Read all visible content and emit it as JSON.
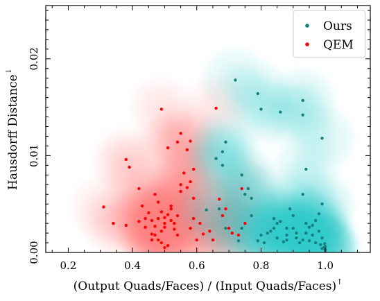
{
  "chart_data": {
    "type": "scatter",
    "xlabel": "(Output Quads/Faces) / (Input Quads/Faces)",
    "xlabel_arrow": "↑",
    "ylabel": "Hausdorff Distance",
    "ylabel_arrow": "↓",
    "xlim": [
      0.13,
      1.14
    ],
    "ylim": [
      0.0,
      0.0255
    ],
    "x_ticks": [
      0.2,
      0.4,
      0.6,
      0.8,
      1.0
    ],
    "x_tick_labels": [
      "0.2",
      "0.4",
      "0.6",
      "0.8",
      "1.0"
    ],
    "y_ticks": [
      0.0,
      0.01,
      0.02
    ],
    "y_tick_labels": [
      "0.00",
      "0.01",
      "0.02"
    ],
    "grid": false,
    "legend_position": "top-right",
    "density_overlay": true,
    "series": [
      {
        "name": "Ours",
        "color": "#167f7f",
        "density_color": "#2ec4c4",
        "points": [
          [
            0.72,
            0.0178
          ],
          [
            0.79,
            0.0164
          ],
          [
            0.8,
            0.0148
          ],
          [
            0.86,
            0.0145
          ],
          [
            0.93,
            0.0157
          ],
          [
            0.93,
            0.0142
          ],
          [
            0.99,
            0.0118
          ],
          [
            0.94,
            0.0086
          ],
          [
            0.69,
            0.0114
          ],
          [
            0.68,
            0.0104
          ],
          [
            0.66,
            0.0097
          ],
          [
            0.68,
            0.009
          ],
          [
            0.74,
            0.008
          ],
          [
            0.76,
            0.0066
          ],
          [
            0.75,
            0.006
          ],
          [
            0.77,
            0.0056
          ],
          [
            0.67,
            0.0045
          ],
          [
            0.63,
            0.0044
          ],
          [
            0.74,
            0.0025
          ],
          [
            0.77,
            0.0038
          ],
          [
            0.69,
            0.0025
          ],
          [
            0.73,
            0.0012
          ],
          [
            0.79,
            0.0012
          ],
          [
            0.81,
            0.001
          ],
          [
            0.8,
            0.0018
          ],
          [
            0.82,
            0.002
          ],
          [
            0.83,
            0.0022
          ],
          [
            0.84,
            0.0025
          ],
          [
            0.85,
            0.003
          ],
          [
            0.86,
            0.0032
          ],
          [
            0.85,
            0.0015
          ],
          [
            0.87,
            0.0011
          ],
          [
            0.88,
            0.0013
          ],
          [
            0.88,
            0.0018
          ],
          [
            0.88,
            0.0025
          ],
          [
            0.89,
            0.0045
          ],
          [
            0.9,
            0.0038
          ],
          [
            0.9,
            0.0025
          ],
          [
            0.91,
            0.002
          ],
          [
            0.91,
            0.0015
          ],
          [
            0.92,
            0.001
          ],
          [
            0.93,
            0.0013
          ],
          [
            0.94,
            0.002
          ],
          [
            0.94,
            0.003
          ],
          [
            0.95,
            0.0026
          ],
          [
            0.95,
            0.0012
          ],
          [
            0.96,
            0.0018
          ],
          [
            0.96,
            0.0028
          ],
          [
            0.97,
            0.001
          ],
          [
            0.97,
            0.0033
          ],
          [
            0.98,
            0.004
          ],
          [
            0.98,
            0.0022
          ],
          [
            0.99,
            0.005
          ],
          [
            0.99,
            0.0015
          ],
          [
            0.985,
            0.0008
          ],
          [
            0.99,
            0.0004
          ],
          [
            0.995,
            0.0005
          ],
          [
            1.0,
            0.0003
          ],
          [
            1.0,
            0.0006
          ],
          [
            1.0,
            0.0002
          ],
          [
            0.998,
            0.0009
          ],
          [
            0.93,
            0.006
          ],
          [
            0.84,
            0.0035
          ]
        ]
      },
      {
        "name": "QEM",
        "color": "#ff0000",
        "density_color": "#ff7b7b",
        "points": [
          [
            0.49,
            0.0148
          ],
          [
            0.66,
            0.0149
          ],
          [
            0.55,
            0.0123
          ],
          [
            0.54,
            0.0114
          ],
          [
            0.58,
            0.0115
          ],
          [
            0.57,
            0.0106
          ],
          [
            0.51,
            0.0108
          ],
          [
            0.38,
            0.0096
          ],
          [
            0.39,
            0.0088
          ],
          [
            0.56,
            0.0082
          ],
          [
            0.59,
            0.0086
          ],
          [
            0.55,
            0.007
          ],
          [
            0.58,
            0.0073
          ],
          [
            0.57,
            0.0067
          ],
          [
            0.55,
            0.0063
          ],
          [
            0.59,
            0.0056
          ],
          [
            0.42,
            0.0066
          ],
          [
            0.47,
            0.006
          ],
          [
            0.48,
            0.0052
          ],
          [
            0.43,
            0.0048
          ],
          [
            0.45,
            0.0041
          ],
          [
            0.44,
            0.0035
          ],
          [
            0.31,
            0.0047
          ],
          [
            0.34,
            0.003
          ],
          [
            0.38,
            0.0028
          ],
          [
            0.42,
            0.0032
          ],
          [
            0.44,
            0.0026
          ],
          [
            0.46,
            0.0033
          ],
          [
            0.47,
            0.0027
          ],
          [
            0.48,
            0.0035
          ],
          [
            0.49,
            0.0042
          ],
          [
            0.5,
            0.0036
          ],
          [
            0.5,
            0.003
          ],
          [
            0.5,
            0.0026
          ],
          [
            0.51,
            0.0039
          ],
          [
            0.52,
            0.0045
          ],
          [
            0.52,
            0.0033
          ],
          [
            0.53,
            0.003
          ],
          [
            0.53,
            0.0024
          ],
          [
            0.54,
            0.0038
          ],
          [
            0.54,
            0.0018
          ],
          [
            0.46,
            0.0019
          ],
          [
            0.46,
            0.0013
          ],
          [
            0.47,
            0.0018
          ],
          [
            0.49,
            0.001
          ],
          [
            0.5,
            0.0005
          ],
          [
            0.51,
            0.0007
          ],
          [
            0.49,
            0.0022
          ],
          [
            0.48,
            0.0013
          ],
          [
            0.58,
            0.0025
          ],
          [
            0.59,
            0.0035
          ],
          [
            0.61,
            0.003
          ],
          [
            0.62,
            0.0019
          ],
          [
            0.64,
            0.0022
          ],
          [
            0.65,
            0.0013
          ],
          [
            0.6,
            0.0013
          ],
          [
            0.67,
            0.0055
          ],
          [
            0.69,
            0.0045
          ],
          [
            0.68,
            0.0038
          ],
          [
            0.7,
            0.0025
          ],
          [
            0.71,
            0.002
          ],
          [
            0.73,
            0.0018
          ],
          [
            0.75,
            0.003
          ],
          [
            0.74,
            0.0066
          ],
          [
            0.52,
            0.0048
          ]
        ]
      }
    ]
  }
}
